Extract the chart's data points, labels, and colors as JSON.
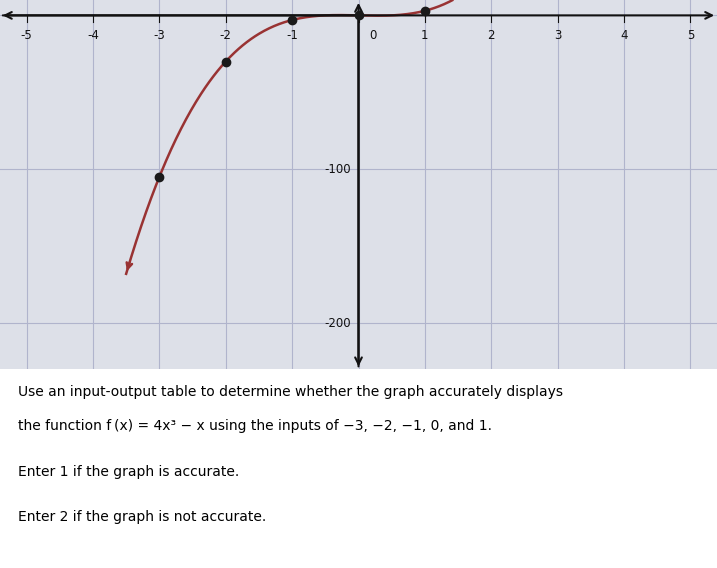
{
  "x_inputs": [
    -3,
    -2,
    -1,
    0,
    1
  ],
  "x_range": [
    -5,
    5
  ],
  "y_range": [
    -230,
    10
  ],
  "y_ticks": [
    -100,
    -200
  ],
  "dot_color": "#1a1a1a",
  "curve_color": "#993333",
  "bg_color": "#dde0e8",
  "grid_color": "#b0b4cc",
  "axis_color": "#111111",
  "text_lines": [
    "Use an input-output table to determine whether the graph accurately displays",
    "the function f (x) = 4x³ − x using the inputs of −3, −2, −1, 0, and 1.",
    "",
    "Enter 1 if the graph is accurate.",
    "",
    "Enter 2 if the graph is not accurate."
  ],
  "num_curve_points": 400,
  "curve_x_start": -3.5,
  "curve_x_end": 1.5
}
